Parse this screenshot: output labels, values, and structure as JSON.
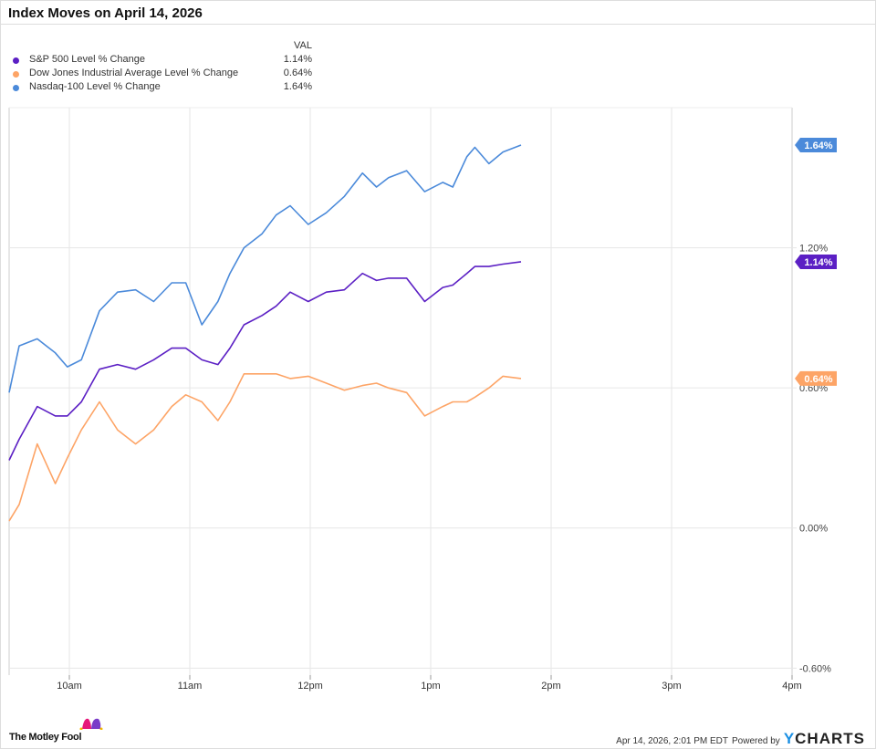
{
  "chart_data": {
    "type": "line",
    "title": "Index Moves on April 14, 2026",
    "legend_header": "VAL",
    "legend_placement": "top-left",
    "grid": true,
    "x_ticks": [
      "10am",
      "11am",
      "12pm",
      "1pm",
      "2pm",
      "3pm",
      "4pm"
    ],
    "x_tick_times": [
      "10:00",
      "11:00",
      "12:00",
      "13:00",
      "14:00",
      "15:00",
      "16:00"
    ],
    "xlim": [
      "09:30",
      "16:00"
    ],
    "y_ticks": [
      "1.20%",
      "0.60%",
      "0.00%",
      "-0.60%"
    ],
    "y_tick_values": [
      1.2,
      0.6,
      0.0,
      -0.6
    ],
    "ylim": [
      -0.63,
      1.8
    ],
    "x": [
      "09:30",
      "09:35",
      "09:44",
      "09:53",
      "09:59",
      "10:06",
      "10:15",
      "10:24",
      "10:33",
      "10:42",
      "10:51",
      "10:58",
      "11:06",
      "11:14",
      "11:20",
      "11:27",
      "11:36",
      "11:43",
      "11:50",
      "11:59",
      "12:08",
      "12:17",
      "12:26",
      "12:33",
      "12:39",
      "12:48",
      "12:57",
      "13:06",
      "13:11",
      "13:18",
      "13:22",
      "13:29",
      "13:36",
      "13:45"
    ],
    "series": [
      {
        "name": "S&P 500 Level % Change",
        "last": "1.14%",
        "color": "#5b1fc4",
        "values": [
          0.29,
          0.38,
          0.52,
          0.48,
          0.48,
          0.54,
          0.68,
          0.7,
          0.68,
          0.72,
          0.77,
          0.77,
          0.72,
          0.7,
          0.77,
          0.87,
          0.91,
          0.95,
          1.01,
          0.97,
          1.01,
          1.02,
          1.09,
          1.06,
          1.07,
          1.07,
          0.97,
          1.03,
          1.04,
          1.09,
          1.12,
          1.12,
          1.13,
          1.14
        ]
      },
      {
        "name": "Dow Jones Industrial Average Level % Change",
        "last": "0.64%",
        "color": "#fda466",
        "values": [
          0.03,
          0.1,
          0.36,
          0.19,
          0.3,
          0.42,
          0.54,
          0.42,
          0.36,
          0.42,
          0.52,
          0.57,
          0.54,
          0.46,
          0.54,
          0.66,
          0.66,
          0.66,
          0.64,
          0.65,
          0.62,
          0.59,
          0.61,
          0.62,
          0.6,
          0.58,
          0.48,
          0.52,
          0.54,
          0.54,
          0.56,
          0.6,
          0.65,
          0.64
        ]
      },
      {
        "name": "Nasdaq-100 Level % Change",
        "last": "1.64%",
        "color": "#4b8ada",
        "values": [
          0.58,
          0.78,
          0.81,
          0.75,
          0.69,
          0.72,
          0.93,
          1.01,
          1.02,
          0.97,
          1.05,
          1.05,
          0.87,
          0.97,
          1.09,
          1.2,
          1.26,
          1.34,
          1.38,
          1.3,
          1.35,
          1.42,
          1.52,
          1.46,
          1.5,
          1.53,
          1.44,
          1.48,
          1.46,
          1.59,
          1.63,
          1.56,
          1.61,
          1.64
        ]
      }
    ]
  },
  "footer": {
    "brand": "The Motley Fool",
    "timestamp": "Apr 14, 2026, 2:01 PM EDT",
    "powered_by": "Powered by",
    "ycharts_y": "Y",
    "ycharts_rest": "CHARTS"
  }
}
